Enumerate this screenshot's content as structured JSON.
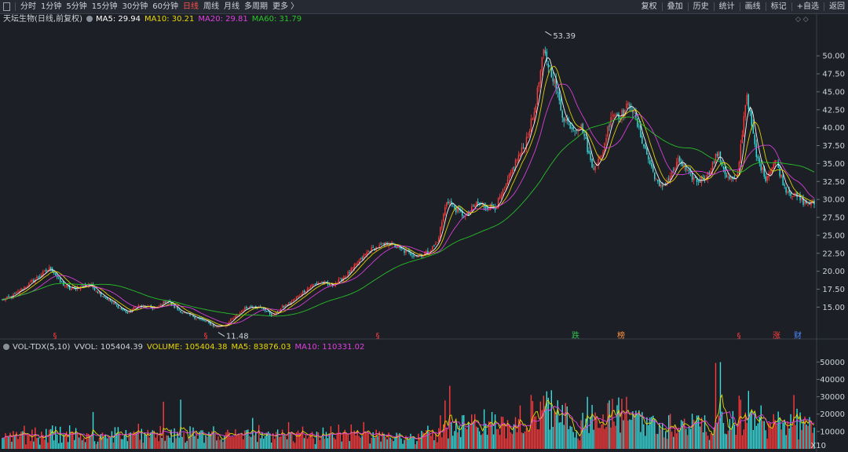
{
  "toolbar": {
    "left": [
      "分时",
      "1分钟",
      "5分钟",
      "15分钟",
      "30分钟",
      "60分钟",
      "日线",
      "周线",
      "月线",
      "多周期",
      "更多 〉"
    ],
    "active": "日线",
    "right": [
      "复权",
      "叠加",
      "历史",
      "统计",
      "画线",
      "标记",
      "+自选",
      "返回"
    ]
  },
  "legend": {
    "title": "天坛生物(日线,前复权)",
    "items": [
      {
        "text": "MA5: 29.94",
        "color": "#ffffff"
      },
      {
        "text": "MA10: 30.21",
        "color": "#e8d800"
      },
      {
        "text": "MA20: 29.81",
        "color": "#e040e0"
      },
      {
        "text": "MA60: 31.79",
        "color": "#28c828"
      }
    ]
  },
  "vol_legend": {
    "items": [
      {
        "text": "VOL-TDX(5,10)",
        "color": "#cfd3da"
      },
      {
        "text": "VVOL: 105404.39",
        "color": "#cfd3da"
      },
      {
        "text": "VOLUME: 105404.38",
        "color": "#e8d800"
      },
      {
        "text": "MA5: 83876.03",
        "color": "#e8d800"
      },
      {
        "text": "MA10: 110331.02",
        "color": "#e040e0"
      }
    ]
  },
  "icons": {
    "gear": "gear-icon",
    "diamond": "diamond-icon"
  },
  "x10_label": "X10",
  "chart_data": [
    {
      "type": "candlestick",
      "y_ticks": [
        15.0,
        17.5,
        20.0,
        22.5,
        25.0,
        27.5,
        30.0,
        32.5,
        35.0,
        37.5,
        40.0,
        42.5,
        45.0,
        47.5,
        50.0
      ],
      "ylim": [
        11.0,
        54.5
      ],
      "annotations": [
        {
          "label": "53.39",
          "value": 53.39,
          "kind": "high"
        },
        {
          "label": "11.48",
          "value": 11.48,
          "kind": "low"
        }
      ],
      "trend": [
        16.0,
        16.5,
        17.5,
        18.5,
        19.5,
        20.5,
        18.5,
        17.5,
        17.8,
        18.2,
        17.0,
        16.0,
        15.0,
        14.2,
        15.2,
        15.0,
        14.8,
        16.0,
        14.8,
        14.0,
        13.6,
        13.0,
        12.3,
        12.5,
        13.5,
        14.8,
        15.2,
        14.8,
        13.8,
        15.0,
        15.8,
        17.0,
        18.0,
        18.5,
        18.0,
        18.8,
        20.0,
        21.5,
        23.0,
        23.4,
        24.0,
        23.2,
        22.5,
        22.2,
        22.6,
        24.0,
        30.0,
        28.5,
        27.5,
        29.5,
        29.0,
        29.0,
        31.5,
        35.0,
        37.5,
        42.0,
        50.5,
        47.0,
        41.5,
        40.0,
        40.0,
        34.5,
        36.0,
        42.0,
        41.8,
        43.5,
        39.0,
        35.0,
        31.5,
        33.0,
        35.5,
        33.5,
        32.5,
        33.5,
        36.5,
        33.0,
        32.5,
        45.0,
        36.0,
        33.0,
        35.5,
        31.5,
        30.5,
        29.5,
        29.5
      ],
      "marker_labels": [
        {
          "text": "§",
          "color": "#ff4040"
        },
        {
          "text": "§",
          "color": "#ff4040"
        },
        {
          "text": "§",
          "color": "#ff4040"
        },
        {
          "text": "跌",
          "color": "#2fbf4f"
        },
        {
          "text": "榜",
          "color": "#ff9040"
        },
        {
          "text": "§",
          "color": "#ff4040"
        },
        {
          "text": "涨",
          "color": "#ff4040"
        },
        {
          "text": "财",
          "color": "#4d8cff"
        }
      ]
    },
    {
      "type": "bar",
      "title": "VOLUME",
      "y_ticks": [
        10000,
        20000,
        30000,
        40000,
        50000
      ],
      "ylim": [
        0,
        56000
      ]
    }
  ]
}
